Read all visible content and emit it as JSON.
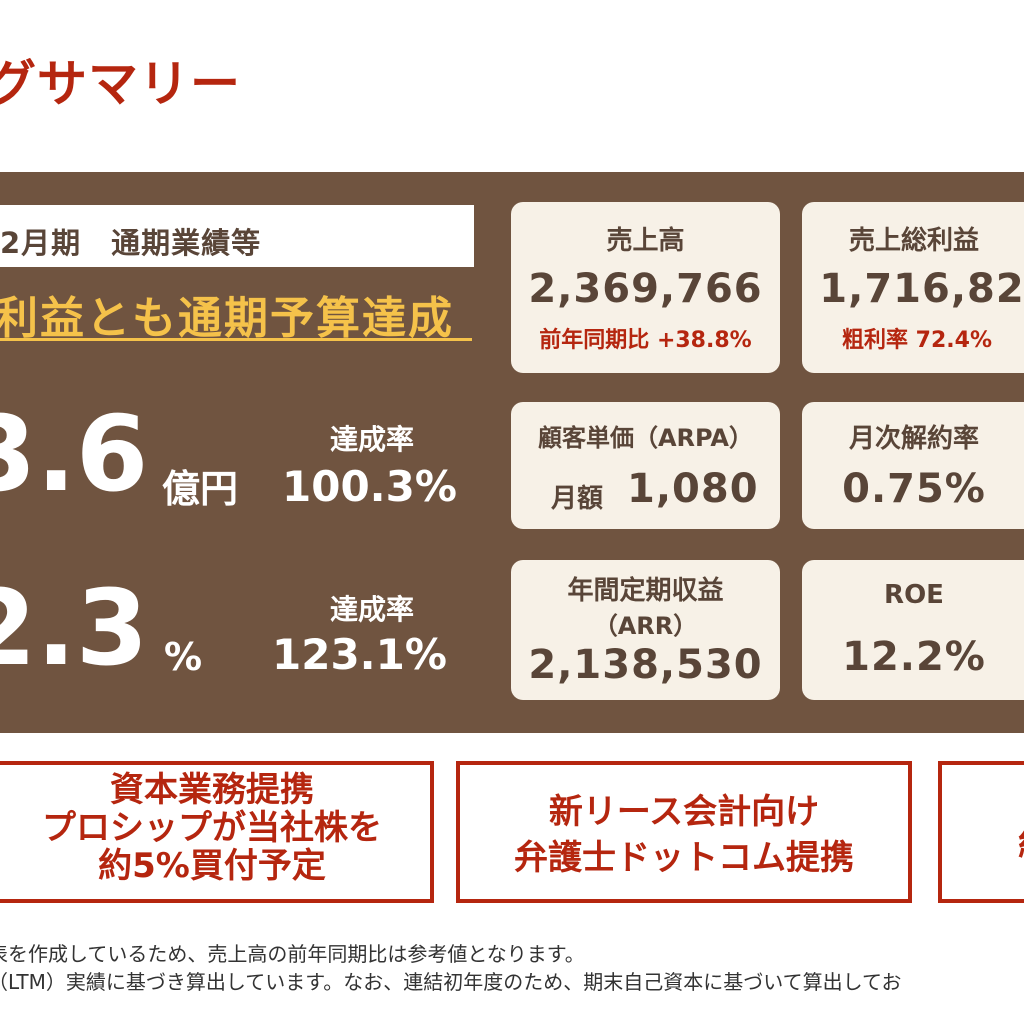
{
  "header": {
    "title": "グサマリー"
  },
  "summary": {
    "period_label": "2月期　通期業績等",
    "headline": "利益とも通期予算達成",
    "metric1": {
      "value": "3.6",
      "unit": "億円",
      "rate_label": "達成率",
      "rate_value": "100.3%"
    },
    "metric2": {
      "value": "2.3",
      "unit": "%",
      "rate_label": "達成率",
      "rate_value": "123.1%"
    }
  },
  "cards": {
    "sales": {
      "label": "売上高",
      "value": "2,369,766",
      "sub": "前年同期比 +38.8%"
    },
    "gross_profit": {
      "label": "売上総利益",
      "value": "1,716,82",
      "sub": "粗利率 72.4%"
    },
    "arpa": {
      "label": "顧客単価（ARPA）",
      "prefix": "月額",
      "value": "1,080"
    },
    "churn": {
      "label": "月次解約率",
      "value": "0.75%"
    },
    "arr": {
      "label": "年間定期収益",
      "label2": "（ARR）",
      "value": "2,138,530"
    },
    "roe": {
      "label": "ROE",
      "value": "12.2%"
    }
  },
  "news": [
    {
      "lines": [
        "資本業務提携",
        "プロシップが当社株を",
        "約5%買付予定"
      ]
    },
    {
      "lines": [
        "新リース会計向け",
        "弁護士ドットコム提携"
      ]
    },
    {
      "lines": [
        "約"
      ]
    }
  ],
  "notes": [
    "表を作成しているため、売上高の前年同期比は参考値となります。",
    "（LTM）実績に基づき算出しています。なお、連結初年度のため、期末自己資本に基づいて算出してお"
  ],
  "colors": {
    "brand_red": "#b5260f",
    "panel_brown": "#705440",
    "card_bg": "#f7f1e7",
    "highlight_yellow": "#f5c24a"
  }
}
